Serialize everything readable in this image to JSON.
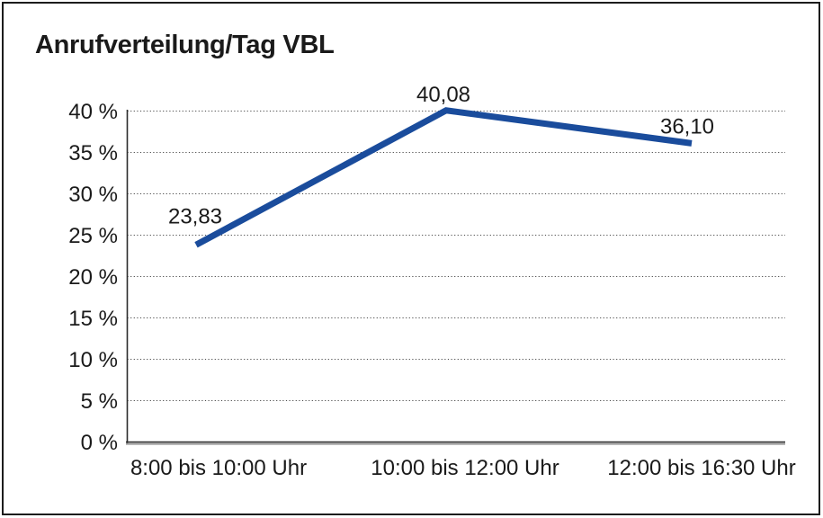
{
  "chart_data": {
    "type": "line",
    "title": "Anrufverteilung/Tag VBL",
    "categories": [
      "8:00 bis 10:00 Uhr",
      "10:00 bis 12:00 Uhr",
      "12:00 bis 16:30 Uhr"
    ],
    "values": [
      23.83,
      40.08,
      36.1
    ],
    "point_labels": [
      "23,83",
      "40,08",
      "36,10"
    ],
    "xlabel": "",
    "ylabel": "",
    "ylim": [
      0,
      40
    ],
    "ytick_step": 5,
    "ytick_labels": [
      "0 %",
      "5 %",
      "10 %",
      "15 %",
      "20 %",
      "25 %",
      "30 %",
      "35 %",
      "40 %"
    ],
    "grid": {
      "horizontal": true,
      "vertical": false,
      "style": "dotted"
    },
    "legend": "none",
    "colors": {
      "line": "#1a4c9c",
      "grid": "#4a4a4a",
      "axis": "#2b2b2b",
      "axis_shadow": "#9a9a9a",
      "text": "#1a1a1a",
      "frame": "#1c1c1c",
      "background": "#ffffff"
    }
  }
}
